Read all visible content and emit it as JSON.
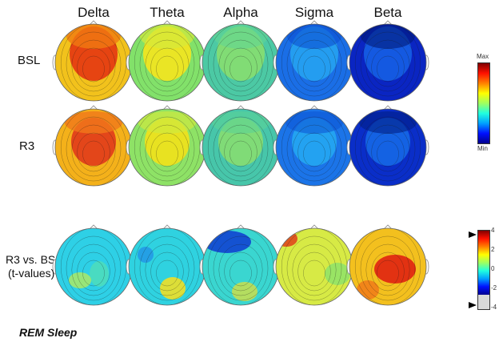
{
  "bands": [
    {
      "label": "Delta"
    },
    {
      "label": "Theta"
    },
    {
      "label": "Alpha"
    },
    {
      "label": "Sigma"
    },
    {
      "label": "Beta"
    }
  ],
  "rows": [
    {
      "label": "BSL"
    },
    {
      "label": "R3"
    },
    {
      "label_line1": "R3 vs. BSL",
      "label_line2": "(t-values)"
    }
  ],
  "maps": [
    [
      {
        "bg": "#f2c21c",
        "spots": [
          {
            "c": "#e53d12",
            "o": 0.95
          },
          {
            "c": "#f07a12",
            "o": 0.8
          }
        ]
      },
      {
        "bg": "#82e16a",
        "spots": [
          {
            "c": "#f5e51e",
            "o": 0.9
          },
          {
            "c": "#d4ea3a",
            "o": 0.7
          }
        ]
      },
      {
        "bg": "#4cc9a4",
        "spots": [
          {
            "c": "#8fe169",
            "o": 0.8
          },
          {
            "c": "#62d592",
            "o": 0.6
          }
        ]
      },
      {
        "bg": "#1a6ee6",
        "spots": [
          {
            "c": "#27a9f2",
            "o": 0.8
          },
          {
            "c": "#0b4fd2",
            "o": 0.6
          }
        ]
      },
      {
        "bg": "#0a25c2",
        "spots": [
          {
            "c": "#1663e6",
            "o": 0.85
          },
          {
            "c": "#001a7a",
            "o": 0.6
          }
        ]
      }
    ],
    [
      {
        "bg": "#f4b11a",
        "spots": [
          {
            "c": "#e2401a",
            "o": 0.95
          },
          {
            "c": "#f0781a",
            "o": 0.8
          }
        ]
      },
      {
        "bg": "#8ee266",
        "spots": [
          {
            "c": "#f2e21a",
            "o": 0.9
          },
          {
            "c": "#cfe93e",
            "o": 0.7
          }
        ]
      },
      {
        "bg": "#47c6aa",
        "spots": [
          {
            "c": "#8fe06a",
            "o": 0.8
          },
          {
            "c": "#5bd296",
            "o": 0.6
          }
        ]
      },
      {
        "bg": "#1b74e8",
        "spots": [
          {
            "c": "#26aef2",
            "o": 0.8
          },
          {
            "c": "#0d56d6",
            "o": 0.6
          }
        ]
      },
      {
        "bg": "#0a2ec8",
        "spots": [
          {
            "c": "#166be8",
            "o": 0.85
          },
          {
            "c": "#001e86",
            "o": 0.6
          }
        ]
      }
    ],
    [
      {
        "bg": "#2ed0e6",
        "spots": [
          {
            "c": "#56e0b0",
            "o": 0.7
          },
          {
            "c": "#c6ee4a",
            "o": 0.7
          }
        ]
      },
      {
        "bg": "#2fd2e0",
        "spots": [
          {
            "c": "#f0df26",
            "o": 0.9
          },
          {
            "c": "#1e7ee8",
            "o": 0.6
          }
        ]
      },
      {
        "bg": "#3ad6d0",
        "spots": [
          {
            "c": "#1144d0",
            "o": 0.9
          },
          {
            "c": "#e8e030",
            "o": 0.7
          }
        ]
      },
      {
        "bg": "#d7ea45",
        "spots": [
          {
            "c": "#e0401a",
            "o": 0.85
          },
          {
            "c": "#70e07a",
            "o": 0.6
          }
        ]
      },
      {
        "bg": "#f3c01e",
        "spots": [
          {
            "c": "#e02a12",
            "o": 0.95
          },
          {
            "c": "#f07618",
            "o": 0.8
          }
        ]
      }
    ]
  ],
  "colorbar_top": {
    "max_label": "Max",
    "min_label": "Min"
  },
  "colorbar_bottom": {
    "ticks": [
      "4",
      "2",
      "0",
      "-2",
      "-4"
    ]
  },
  "footer": "REM Sleep",
  "colors": {
    "jet": [
      "#00008f",
      "#0010ff",
      "#00a0ff",
      "#20ffdf",
      "#9fff60",
      "#ffff00",
      "#ff8000",
      "#ff1000",
      "#800000"
    ]
  }
}
